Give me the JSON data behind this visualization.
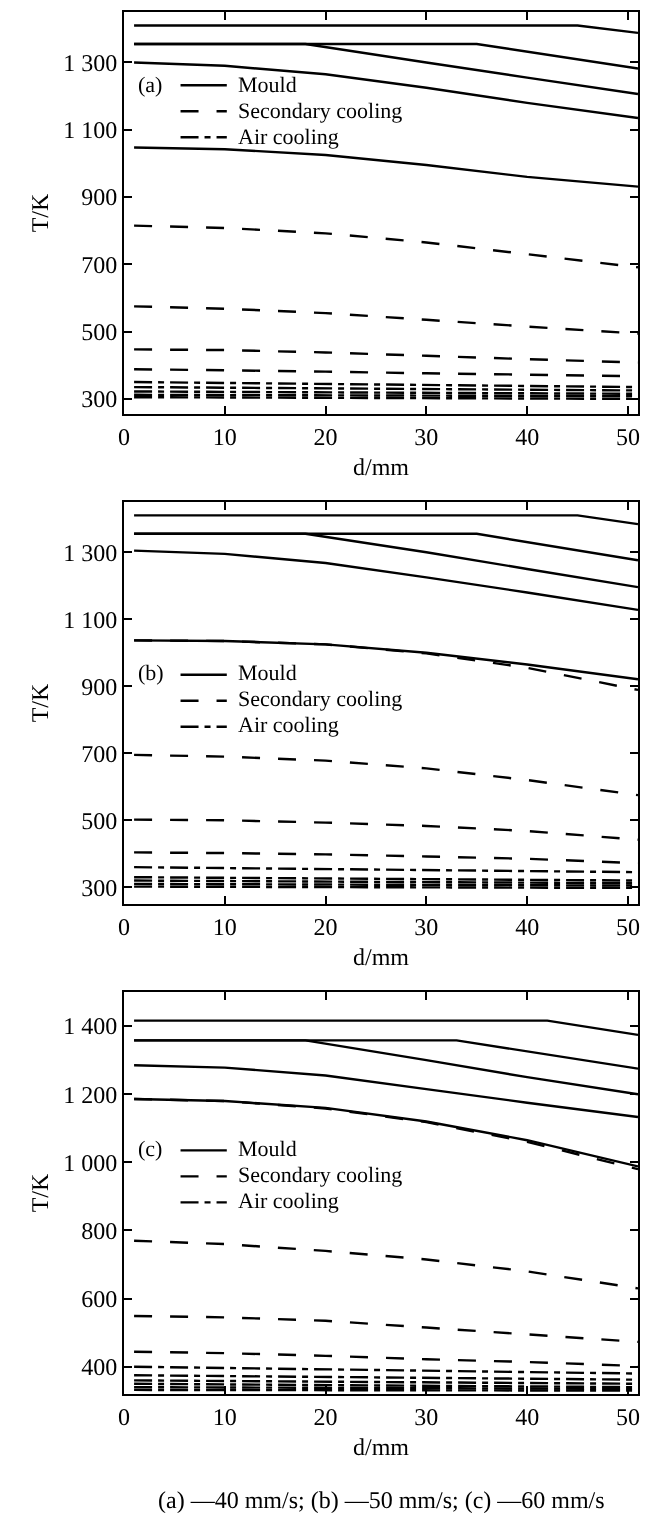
{
  "chart_data": [
    {
      "type": "line",
      "xlabel": "d/mm",
      "ylabel": "T/K",
      "xlim": [
        0,
        51
      ],
      "xticks": [
        0,
        10,
        20,
        30,
        40,
        50
      ],
      "ylim": [
        255,
        1450
      ],
      "yticks": [
        {
          "value": 300,
          "label": "300"
        },
        {
          "value": 500,
          "label": "500"
        },
        {
          "value": 700,
          "label": "700"
        },
        {
          "value": 900,
          "label": "900"
        },
        {
          "value": 1100,
          "label": "1 100"
        },
        {
          "value": 1300,
          "label": "1 300"
        }
      ],
      "grid": false,
      "legend": "left",
      "annotations": [
        "(a)"
      ],
      "series": [
        {
          "name": "Mould",
          "color": "#000000",
          "line_style": "solid",
          "x": [
            1,
            45,
            51
          ],
          "values": [
            1410,
            1410,
            1388
          ]
        },
        {
          "color": "#000000",
          "line_style": "solid",
          "x": [
            1,
            35,
            51
          ],
          "values": [
            1355,
            1355,
            1282
          ]
        },
        {
          "color": "#000000",
          "line_style": "solid",
          "x": [
            1,
            18,
            30,
            40,
            51
          ],
          "values": [
            1355,
            1355,
            1300,
            1255,
            1206
          ]
        },
        {
          "color": "#000000",
          "line_style": "solid",
          "x": [
            1,
            10,
            20,
            30,
            40,
            51
          ],
          "values": [
            1300,
            1290,
            1265,
            1225,
            1180,
            1135
          ]
        },
        {
          "color": "#000000",
          "line_style": "solid",
          "x": [
            1,
            10,
            20,
            30,
            40,
            51
          ],
          "values": [
            1047,
            1042,
            1025,
            995,
            960,
            931
          ]
        },
        {
          "name": "Secondary cooling",
          "color": "#000000",
          "line_style": "dashed",
          "x": [
            1,
            10,
            20,
            30,
            40,
            51
          ],
          "values": [
            815,
            808,
            792,
            765,
            730,
            691
          ]
        },
        {
          "color": "#000000",
          "line_style": "dashed",
          "x": [
            1,
            10,
            20,
            30,
            40,
            51
          ],
          "values": [
            575,
            568,
            555,
            535,
            515,
            494
          ]
        },
        {
          "color": "#000000",
          "line_style": "dashed",
          "x": [
            1,
            10,
            20,
            30,
            40,
            51
          ],
          "values": [
            447,
            445,
            438,
            428,
            418,
            408
          ]
        },
        {
          "color": "#000000",
          "line_style": "dashed",
          "x": [
            1,
            10,
            20,
            30,
            40,
            51
          ],
          "values": [
            388,
            385,
            381,
            376,
            372,
            367
          ]
        },
        {
          "name": "Air cooling",
          "color": "#000000",
          "line_style": "dotted",
          "x": [
            1,
            51
          ],
          "values": [
            350,
            335
          ]
        },
        {
          "color": "#000000",
          "line_style": "dotted",
          "x": [
            1,
            51
          ],
          "values": [
            335,
            325
          ]
        },
        {
          "color": "#000000",
          "line_style": "dotted",
          "x": [
            1,
            51
          ],
          "values": [
            322,
            315
          ]
        },
        {
          "color": "#000000",
          "line_style": "dotted",
          "x": [
            1,
            51
          ],
          "values": [
            312,
            308
          ]
        },
        {
          "color": "#000000",
          "line_style": "dotted",
          "x": [
            1,
            51
          ],
          "values": [
            305,
            300
          ]
        }
      ]
    },
    {
      "type": "line",
      "xlabel": "d/mm",
      "ylabel": "T/K",
      "xlim": [
        0,
        51
      ],
      "xticks": [
        0,
        10,
        20,
        30,
        40,
        50
      ],
      "ylim": [
        250,
        1450
      ],
      "yticks": [
        {
          "value": 300,
          "label": "300"
        },
        {
          "value": 500,
          "label": "500"
        },
        {
          "value": 700,
          "label": "700"
        },
        {
          "value": 900,
          "label": "900"
        },
        {
          "value": 1100,
          "label": "1 100"
        },
        {
          "value": 1300,
          "label": "1 300"
        }
      ],
      "grid": false,
      "legend": "left",
      "annotations": [
        "(b)"
      ],
      "series": [
        {
          "name": "Mould",
          "color": "#000000",
          "line_style": "solid",
          "x": [
            1,
            45,
            51
          ],
          "values": [
            1410,
            1410,
            1384
          ]
        },
        {
          "color": "#000000",
          "line_style": "solid",
          "x": [
            1,
            35,
            51
          ],
          "values": [
            1355,
            1355,
            1276
          ]
        },
        {
          "color": "#000000",
          "line_style": "solid",
          "x": [
            1,
            18,
            30,
            40,
            51
          ],
          "values": [
            1355,
            1355,
            1300,
            1250,
            1196
          ]
        },
        {
          "color": "#000000",
          "line_style": "solid",
          "x": [
            1,
            10,
            20,
            30,
            40,
            51
          ],
          "values": [
            1305,
            1295,
            1268,
            1225,
            1180,
            1128
          ]
        },
        {
          "color": "#000000",
          "line_style": "solid",
          "x": [
            1,
            10,
            20,
            30,
            40,
            51
          ],
          "values": [
            1037,
            1035,
            1025,
            1000,
            965,
            921
          ]
        },
        {
          "name": "Secondary cooling",
          "color": "#000000",
          "line_style": "dashed",
          "x": [
            1,
            10,
            20,
            30,
            40,
            51
          ],
          "values": [
            1037,
            1035,
            1025,
            998,
            955,
            889
          ]
        },
        {
          "color": "#000000",
          "line_style": "dashed",
          "x": [
            1,
            10,
            20,
            30,
            40,
            51
          ],
          "values": [
            695,
            690,
            678,
            655,
            620,
            575
          ]
        },
        {
          "color": "#000000",
          "line_style": "dashed",
          "x": [
            1,
            10,
            20,
            30,
            40,
            51
          ],
          "values": [
            502,
            500,
            493,
            483,
            468,
            442
          ]
        },
        {
          "color": "#000000",
          "line_style": "dashed",
          "x": [
            1,
            10,
            20,
            30,
            40,
            51
          ],
          "values": [
            404,
            402,
            398,
            392,
            385,
            372
          ]
        },
        {
          "name": "Air cooling",
          "color": "#000000",
          "line_style": "dotted",
          "x": [
            1,
            51
          ],
          "values": [
            360,
            345
          ]
        },
        {
          "color": "#000000",
          "line_style": "dotted",
          "x": [
            1,
            51
          ],
          "values": [
            330,
            320
          ]
        },
        {
          "color": "#000000",
          "line_style": "dotted",
          "x": [
            1,
            51
          ],
          "values": [
            320,
            312
          ]
        },
        {
          "color": "#000000",
          "line_style": "dotted",
          "x": [
            1,
            51
          ],
          "values": [
            310,
            305
          ]
        },
        {
          "color": "#000000",
          "line_style": "dotted",
          "x": [
            1,
            51
          ],
          "values": [
            302,
            298
          ]
        }
      ]
    },
    {
      "type": "line",
      "xlabel": "d/mm",
      "ylabel": "T/K",
      "xlim": [
        0,
        51
      ],
      "xticks": [
        0,
        10,
        20,
        30,
        40,
        50
      ],
      "ylim": [
        320,
        1500
      ],
      "yticks": [
        {
          "value": 400,
          "label": "400"
        },
        {
          "value": 600,
          "label": "600"
        },
        {
          "value": 800,
          "label": "800"
        },
        {
          "value": 1000,
          "label": "1 000"
        },
        {
          "value": 1200,
          "label": "1 200"
        },
        {
          "value": 1400,
          "label": "1 400"
        }
      ],
      "grid": false,
      "legend": "left",
      "annotations": [
        "(c)",
        "(a) —40 mm/s; (b) —50 mm/s; (c) —60 mm/s"
      ],
      "series": [
        {
          "name": "Mould",
          "color": "#000000",
          "line_style": "solid",
          "x": [
            1,
            42,
            51
          ],
          "values": [
            1416,
            1416,
            1374
          ]
        },
        {
          "color": "#000000",
          "line_style": "solid",
          "x": [
            1,
            33,
            51
          ],
          "values": [
            1358,
            1358,
            1275
          ]
        },
        {
          "color": "#000000",
          "line_style": "solid",
          "x": [
            1,
            18,
            30,
            40,
            51
          ],
          "values": [
            1358,
            1358,
            1300,
            1250,
            1200
          ]
        },
        {
          "color": "#000000",
          "line_style": "solid",
          "x": [
            1,
            10,
            20,
            30,
            40,
            51
          ],
          "values": [
            1285,
            1278,
            1255,
            1215,
            1175,
            1133
          ]
        },
        {
          "color": "#000000",
          "line_style": "solid",
          "x": [
            1,
            10,
            20,
            30,
            40,
            51
          ],
          "values": [
            1186,
            1180,
            1160,
            1120,
            1065,
            988
          ]
        },
        {
          "name": "Secondary cooling",
          "color": "#000000",
          "line_style": "dashed",
          "x": [
            1,
            10,
            20,
            30,
            40,
            51
          ],
          "values": [
            1186,
            1180,
            1158,
            1118,
            1060,
            980
          ]
        },
        {
          "color": "#000000",
          "line_style": "dashed",
          "x": [
            1,
            10,
            20,
            30,
            40,
            51
          ],
          "values": [
            770,
            760,
            740,
            715,
            680,
            630
          ]
        },
        {
          "color": "#000000",
          "line_style": "dashed",
          "x": [
            1,
            10,
            20,
            30,
            40,
            51
          ],
          "values": [
            549,
            545,
            535,
            515,
            495,
            473
          ]
        },
        {
          "color": "#000000",
          "line_style": "dashed",
          "x": [
            1,
            10,
            20,
            30,
            40,
            51
          ],
          "values": [
            444,
            440,
            432,
            422,
            414,
            402
          ]
        },
        {
          "name": "Air cooling",
          "color": "#000000",
          "line_style": "dotted",
          "x": [
            1,
            51
          ],
          "values": [
            400,
            380
          ]
        },
        {
          "color": "#000000",
          "line_style": "dotted",
          "x": [
            1,
            51
          ],
          "values": [
            375,
            362
          ]
        },
        {
          "color": "#000000",
          "line_style": "dotted",
          "x": [
            1,
            51
          ],
          "values": [
            360,
            350
          ]
        },
        {
          "color": "#000000",
          "line_style": "dotted",
          "x": [
            1,
            51
          ],
          "values": [
            350,
            340
          ]
        },
        {
          "color": "#000000",
          "line_style": "dotted",
          "x": [
            1,
            51
          ],
          "values": [
            340,
            335
          ]
        },
        {
          "color": "#000000",
          "line_style": "dotted",
          "x": [
            1,
            51
          ],
          "values": [
            332,
            330
          ]
        }
      ]
    }
  ]
}
